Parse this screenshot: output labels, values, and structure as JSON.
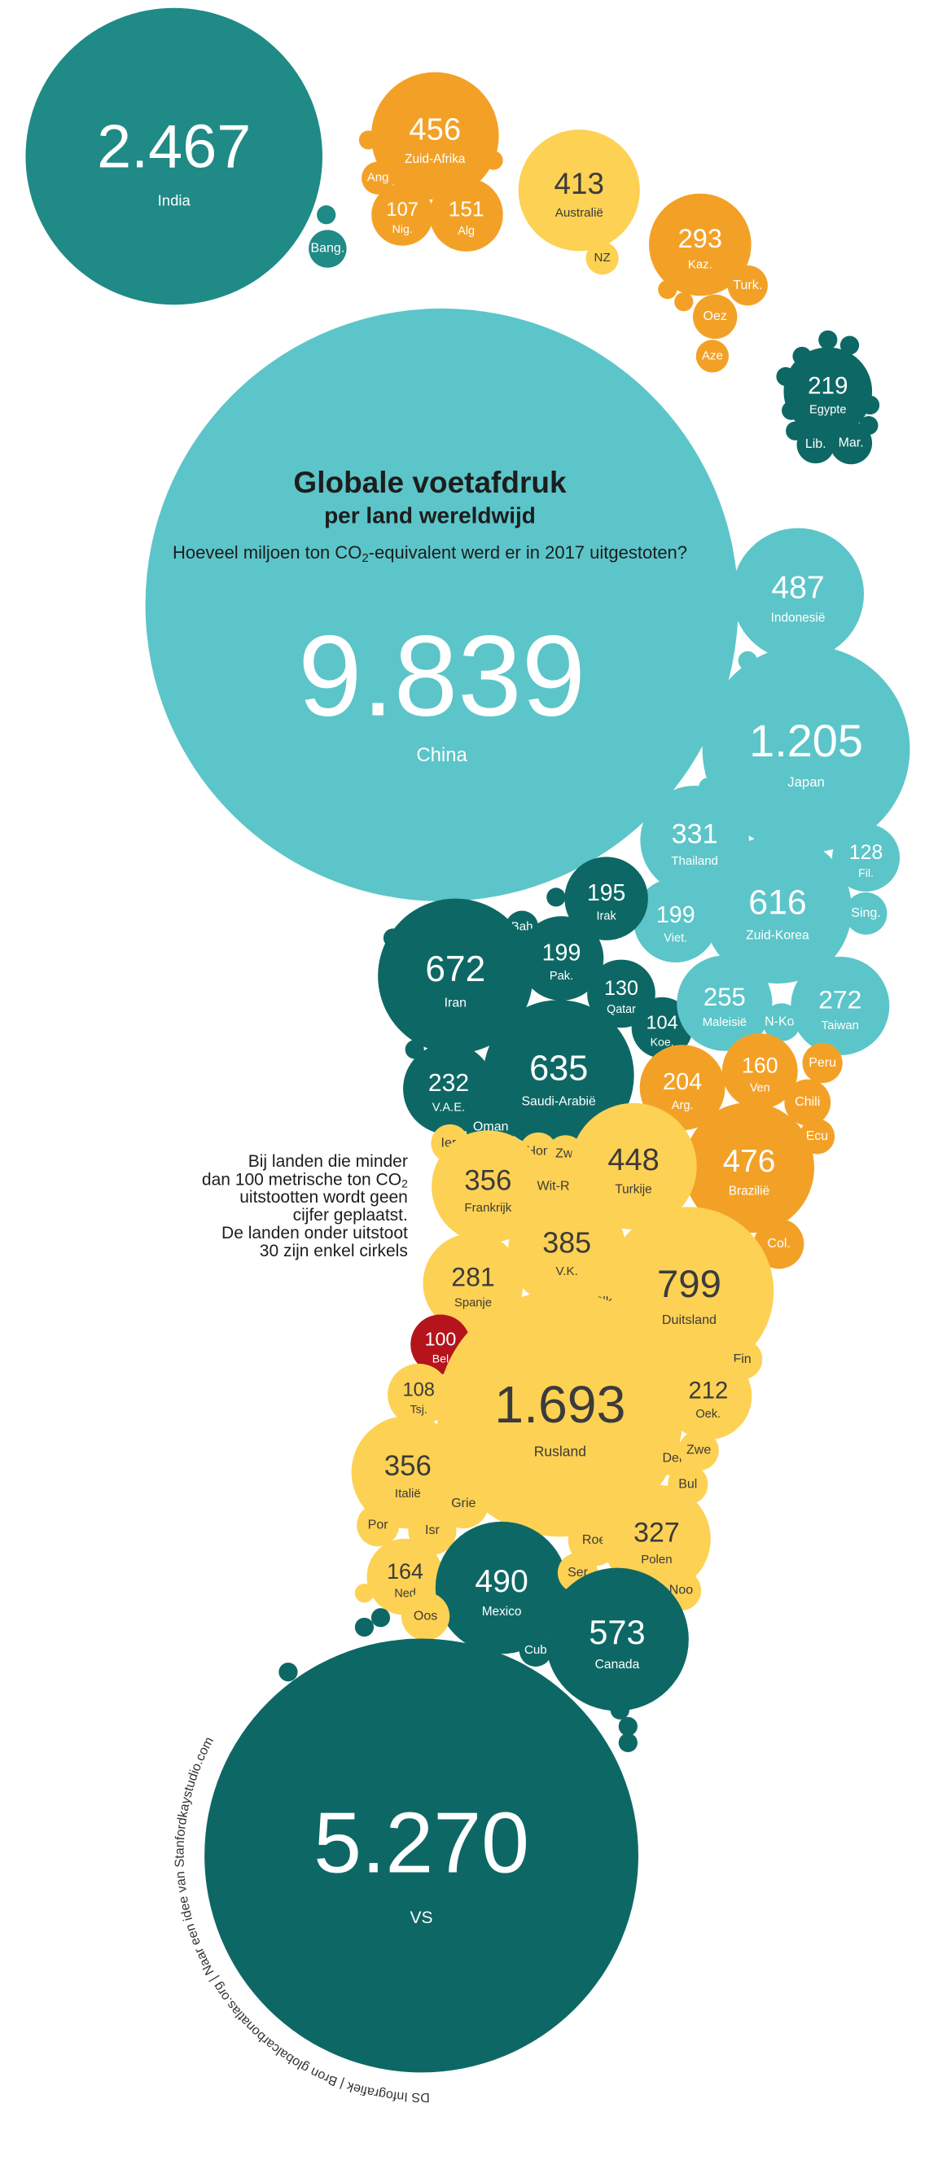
{
  "chart_data": {
    "type": "bubble",
    "title": "Globale voetafdruk",
    "subtitle": "per land wereldwijd",
    "question": [
      "Hoeveel miljoen ton CO",
      "2",
      "-equivalent werd er in 2017 uitgestoten?"
    ],
    "note": [
      "Bij landen die minder",
      [
        "dan 100 metrische ton CO",
        "2"
      ],
      "uitstootten wordt geen",
      "cijfer geplaatst.",
      "De landen onder uitstoot",
      "30 zijn enkel cirkels"
    ],
    "credit": "DS Infografiek | Bron globalcarbonatlas.org | Naar een idee van Stanfordkaystudio.com",
    "categories": [
      "India",
      "Bang.",
      "Zuid-Afrika",
      "Ang",
      "Nig.",
      "Alg",
      "Australië",
      "NZ",
      "Kaz.",
      "Turk.",
      "Oez",
      "Aze",
      "Egypte",
      "Lib.",
      "Mar.",
      "China",
      "Indonesië",
      "Japan",
      "Thailand",
      "Fil.",
      "Zuid-Korea",
      "Sing.",
      "Viet.",
      "Irak",
      "Bah",
      "Pak.",
      "Iran",
      "Qatar",
      "Koe.",
      "Maleisië",
      "N-Kor",
      "Taiwan",
      "Saudi-Arabië",
      "V.A.E.",
      "Oman",
      "Arg.",
      "Ven",
      "Peru",
      "Chili",
      "Ecu",
      "Brazilië",
      "Col.",
      "Ier.",
      "Hon",
      "Zwi",
      "Turkije",
      "Frankrijk",
      "Wit-R",
      "V.K.",
      "Duitsland",
      "Spanje",
      "Slk.",
      "Bel",
      "Fin",
      "Tsj.",
      "Rusland",
      "Oek.",
      "Italië",
      "Den",
      "Zwe",
      "Bul",
      "Grie",
      "Por",
      "Isr",
      "Roe",
      "Polen",
      "Ned",
      "Mexico",
      "Ser",
      "Noo",
      "Oos",
      "Cub",
      "Canada",
      "VS",
      null,
      null,
      null,
      null,
      null,
      null,
      null,
      null,
      null,
      null,
      null,
      null,
      null,
      null,
      null,
      null,
      null,
      null,
      null,
      null,
      null,
      null,
      null,
      null,
      null
    ],
    "values": [
      2467,
      40,
      456,
      30,
      107,
      151,
      413,
      30,
      293,
      45,
      55,
      30,
      219,
      40,
      50,
      9839,
      487,
      1205,
      331,
      128,
      616,
      50,
      199,
      195,
      30,
      199,
      672,
      130,
      104,
      255,
      40,
      272,
      635,
      232,
      70,
      204,
      160,
      45,
      60,
      35,
      476,
      70,
      40,
      40,
      40,
      448,
      356,
      60,
      385,
      799,
      281,
      35,
      100,
      45,
      108,
      1693,
      212,
      356,
      35,
      45,
      45,
      70,
      50,
      65,
      75,
      327,
      164,
      490,
      45,
      45,
      65,
      30,
      573,
      5270,
      10,
      10,
      10,
      10,
      10,
      10,
      10,
      10,
      10,
      10,
      10,
      10,
      10,
      10,
      10,
      10,
      10,
      10,
      10,
      10,
      10,
      10,
      10,
      10,
      10
    ],
    "value_labels": [
      "2.467",
      null,
      "456",
      null,
      "107",
      "151",
      "413",
      null,
      "293",
      null,
      null,
      null,
      "219",
      null,
      null,
      "9.839",
      "487",
      "1.205",
      "331",
      "128",
      "616",
      null,
      "199",
      "195",
      null,
      "199",
      "672",
      "130",
      "104",
      "255",
      null,
      "272",
      "635",
      "232",
      null,
      "204",
      "160",
      null,
      null,
      null,
      "476",
      null,
      null,
      null,
      null,
      "448",
      "356",
      null,
      "385",
      "799",
      "281",
      null,
      "100",
      null,
      "108",
      "1.693",
      "212",
      "356",
      null,
      null,
      null,
      null,
      null,
      null,
      null,
      "327",
      "164",
      "490",
      null,
      null,
      null,
      null,
      "573",
      "5.270",
      null,
      null,
      null,
      null,
      null,
      null,
      null,
      null,
      null,
      null,
      null,
      null,
      null,
      null,
      null,
      null,
      null,
      null,
      null,
      null,
      null,
      null,
      null,
      null,
      null
    ],
    "colors": [
      "#1f8a86",
      "#1f8a86",
      "#f3a126",
      "#f3a126",
      "#f3a126",
      "#f3a126",
      "#fdd153",
      "#fdd153",
      "#f3a126",
      "#f3a126",
      "#f3a126",
      "#f3a126",
      "#0d6865",
      "#0d6865",
      "#0d6865",
      "#5cc5c9",
      "#5cc5c9",
      "#5cc5c9",
      "#5cc5c9",
      "#5cc5c9",
      "#5cc5c9",
      "#5cc5c9",
      "#5cc5c9",
      "#0d6865",
      "#0d6865",
      "#0d6865",
      "#0d6865",
      "#0d6865",
      "#0d6865",
      "#5cc5c9",
      "#5cc5c9",
      "#5cc5c9",
      "#0d6865",
      "#0d6865",
      "#0d6865",
      "#f3a126",
      "#f3a126",
      "#f3a126",
      "#f3a126",
      "#f3a126",
      "#f3a126",
      "#f3a126",
      "#fdd153",
      "#fdd153",
      "#fdd153",
      "#fdd153",
      "#fdd153",
      "#fdd153",
      "#fdd153",
      "#fdd153",
      "#fdd153",
      "#fdd153",
      "#b5141c",
      "#fdd153",
      "#fdd153",
      "#fdd153",
      "#fdd153",
      "#fdd153",
      "#fdd153",
      "#fdd153",
      "#fdd153",
      "#fdd153",
      "#fdd153",
      "#fdd153",
      "#fdd153",
      "#fdd153",
      "#fdd153",
      "#0d6865",
      "#fdd153",
      "#fdd153",
      "#fdd153",
      "#0d6865",
      "#0d6865",
      "#0d6865",
      "#f3a126",
      "#f3a126",
      "#1f8a86",
      "#f3a126",
      "#f3a126",
      "#0d6865",
      "#0d6865",
      "#0d6865",
      "#0d6865",
      "#0d6865",
      "#0d6865",
      "#0d6865",
      "#0d6865",
      "#5cc5c9",
      "#5cc5c9",
      "#0d6865",
      "#0d6865",
      "#0d6865",
      "#fdd153",
      "#0d6865",
      "#0d6865",
      "#0d6865",
      "#0d6865",
      "#0d6865",
      "#0d6865"
    ]
  }
}
